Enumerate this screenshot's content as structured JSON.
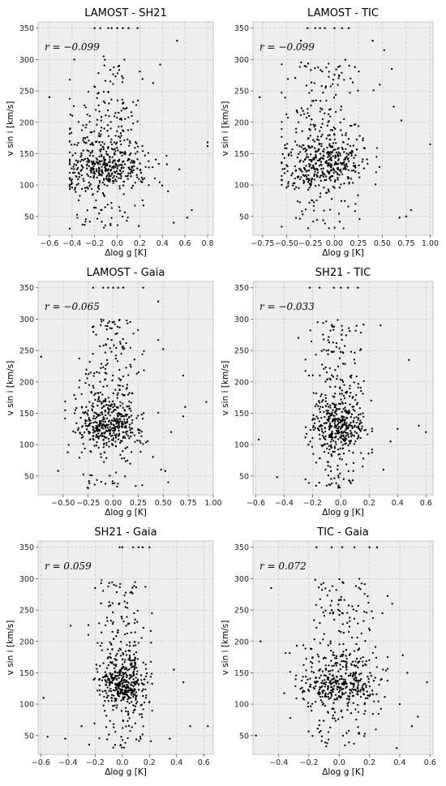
{
  "figure": {
    "ylabel": "v sin i [km/s]",
    "xlabel": "Δlog g [K]"
  },
  "chart_data": [
    {
      "type": "scatter",
      "title": "LAMOST - SH21",
      "annotation": "r = −0.099",
      "xlabel": "Δlog g [K]",
      "ylabel": "v sin i [km/s]",
      "xlim": [
        -0.7,
        0.85
      ],
      "ylim": [
        20,
        360
      ],
      "grid": true,
      "xticks": [
        -0.6,
        -0.4,
        -0.2,
        0.0,
        0.2,
        0.4,
        0.6,
        0.8
      ],
      "xtick_labels": [
        "−0.6",
        "−0.4",
        "−0.2",
        "0.0",
        "0.2",
        "0.4",
        "0.6",
        "0.8"
      ],
      "yticks": [
        50,
        100,
        150,
        200,
        250,
        300,
        350
      ],
      "cloud": {
        "n": 560,
        "x_center": -0.1,
        "x_spread": 0.18,
        "x_min": -0.42,
        "x_max": 0.45,
        "band_y": 115
      },
      "points": [
        {
          "x": -0.6,
          "y": 240
        },
        {
          "x": -0.4,
          "y": 96
        },
        {
          "x": 0.8,
          "y": 168
        },
        {
          "x": 0.8,
          "y": 162
        },
        {
          "x": 0.62,
          "y": 48
        },
        {
          "x": 0.66,
          "y": 60
        },
        {
          "x": 0.55,
          "y": 125
        },
        {
          "x": 0.45,
          "y": 90
        },
        {
          "x": 0.5,
          "y": 40
        },
        {
          "x": 0.53,
          "y": 330
        },
        {
          "x": 0.38,
          "y": 292
        },
        {
          "x": -0.38,
          "y": 300
        },
        {
          "x": -0.12,
          "y": 305
        },
        {
          "x": -0.3,
          "y": 155
        },
        {
          "x": -0.2,
          "y": 350
        },
        {
          "x": -0.15,
          "y": 350
        },
        {
          "x": -0.08,
          "y": 350
        },
        {
          "x": -0.05,
          "y": 350
        },
        {
          "x": 0.0,
          "y": 350
        },
        {
          "x": 0.05,
          "y": 350
        },
        {
          "x": 0.1,
          "y": 350
        },
        {
          "x": 0.18,
          "y": 350
        }
      ]
    },
    {
      "type": "scatter",
      "title": "LAMOST - TIC",
      "annotation": "r = −0.099",
      "xlabel": "Δlog g [K]",
      "ylabel": "v sin i [km/s]",
      "xlim": [
        -0.85,
        1.03
      ],
      "ylim": [
        20,
        360
      ],
      "grid": true,
      "xticks": [
        -0.75,
        -0.5,
        -0.25,
        0.0,
        0.25,
        0.5,
        0.75,
        1.0
      ],
      "xtick_labels": [
        "−0.75",
        "−0.50",
        "−0.25",
        "0.00",
        "0.25",
        "0.50",
        "0.75",
        "1.00"
      ],
      "yticks": [
        50,
        100,
        150,
        200,
        250,
        300,
        350
      ],
      "cloud": {
        "n": 560,
        "x_center": -0.12,
        "x_spread": 0.22,
        "x_min": -0.55,
        "x_max": 0.6,
        "band_y": 115
      },
      "points": [
        {
          "x": -0.78,
          "y": 240
        },
        {
          "x": -0.5,
          "y": 96
        },
        {
          "x": 1.0,
          "y": 165
        },
        {
          "x": 0.75,
          "y": 50
        },
        {
          "x": 0.68,
          "y": 48
        },
        {
          "x": 0.8,
          "y": 60
        },
        {
          "x": 0.62,
          "y": 225
        },
        {
          "x": 0.7,
          "y": 203
        },
        {
          "x": 0.6,
          "y": 285
        },
        {
          "x": 0.52,
          "y": 315
        },
        {
          "x": 0.4,
          "y": 330
        },
        {
          "x": -0.35,
          "y": 330
        },
        {
          "x": -0.28,
          "y": 350
        },
        {
          "x": -0.2,
          "y": 350
        },
        {
          "x": -0.1,
          "y": 350
        },
        {
          "x": 0.0,
          "y": 350
        },
        {
          "x": 0.08,
          "y": 350
        },
        {
          "x": 0.15,
          "y": 350
        },
        {
          "x": -0.15,
          "y": 350
        }
      ]
    },
    {
      "type": "scatter",
      "title": "LAMOST - Gaia",
      "annotation": "r = −0.065",
      "xlabel": "Δlog g [K]",
      "ylabel": "v sin i [km/s]",
      "xlim": [
        -0.75,
        1.0
      ],
      "ylim": [
        20,
        360
      ],
      "grid": true,
      "xticks": [
        -0.5,
        -0.25,
        0.0,
        0.25,
        0.5,
        0.75,
        1.0
      ],
      "xtick_labels": [
        "−0.50",
        "−0.25",
        "0.00",
        "0.25",
        "0.50",
        "0.75",
        "1.00"
      ],
      "yticks": [
        50,
        100,
        150,
        200,
        250,
        300,
        350
      ],
      "cloud": {
        "n": 560,
        "x_center": -0.05,
        "x_spread": 0.17,
        "x_min": -0.48,
        "x_max": 0.45,
        "band_y": 118
      },
      "points": [
        {
          "x": -0.72,
          "y": 240
        },
        {
          "x": -0.55,
          "y": 58
        },
        {
          "x": 0.93,
          "y": 168
        },
        {
          "x": 0.72,
          "y": 160
        },
        {
          "x": 0.7,
          "y": 145
        },
        {
          "x": 0.7,
          "y": 210
        },
        {
          "x": 0.58,
          "y": 120
        },
        {
          "x": 0.5,
          "y": 252
        },
        {
          "x": 0.45,
          "y": 328
        },
        {
          "x": 0.48,
          "y": 60
        },
        {
          "x": 0.52,
          "y": 58
        },
        {
          "x": 0.55,
          "y": 40
        },
        {
          "x": -0.1,
          "y": 350
        },
        {
          "x": -0.05,
          "y": 350
        },
        {
          "x": 0.0,
          "y": 350
        },
        {
          "x": 0.05,
          "y": 350
        },
        {
          "x": 0.1,
          "y": 350
        },
        {
          "x": -0.2,
          "y": 350
        },
        {
          "x": 0.3,
          "y": 350
        }
      ]
    },
    {
      "type": "scatter",
      "title": "SH21 - TIC",
      "annotation": "r = −0.033",
      "xlabel": "Δlog g [K]",
      "ylabel": "v sin i [km/s]",
      "xlim": [
        -0.62,
        0.65
      ],
      "ylim": [
        20,
        360
      ],
      "grid": true,
      "xticks": [
        -0.6,
        -0.4,
        -0.2,
        0.0,
        0.2,
        0.4,
        0.6
      ],
      "xtick_labels": [
        "−0.6",
        "−0.4",
        "−0.2",
        "0.0",
        "0.2",
        "0.4",
        "0.6"
      ],
      "yticks": [
        50,
        100,
        150,
        200,
        250,
        300,
        350
      ],
      "cloud": {
        "n": 540,
        "x_center": -0.02,
        "x_spread": 0.09,
        "x_min": -0.25,
        "x_max": 0.22,
        "band_y": 115
      },
      "points": [
        {
          "x": -0.58,
          "y": 108
        },
        {
          "x": -0.45,
          "y": 48
        },
        {
          "x": 0.55,
          "y": 130
        },
        {
          "x": 0.6,
          "y": 120
        },
        {
          "x": 0.48,
          "y": 235
        },
        {
          "x": 0.4,
          "y": 125
        },
        {
          "x": 0.35,
          "y": 105
        },
        {
          "x": 0.3,
          "y": 60
        },
        {
          "x": 0.28,
          "y": 290
        },
        {
          "x": -0.3,
          "y": 270
        },
        {
          "x": -0.15,
          "y": 350
        },
        {
          "x": -0.05,
          "y": 350
        },
        {
          "x": 0.0,
          "y": 350
        },
        {
          "x": 0.05,
          "y": 350
        },
        {
          "x": 0.12,
          "y": 350
        },
        {
          "x": -0.22,
          "y": 350
        }
      ]
    },
    {
      "type": "scatter",
      "title": "SH21 - Gaia",
      "annotation": "r = 0.059",
      "xlabel": "Δlog g [K]",
      "ylabel": "v sin i [km/s]",
      "xlim": [
        -0.62,
        0.67
      ],
      "ylim": [
        20,
        360
      ],
      "grid": true,
      "xticks": [
        -0.6,
        -0.4,
        -0.2,
        0.0,
        0.2,
        0.4,
        0.6
      ],
      "xtick_labels": [
        "−0.6",
        "−0.4",
        "−0.2",
        "0.0",
        "0.2",
        "0.4",
        "0.6"
      ],
      "yticks": [
        50,
        100,
        150,
        200,
        250,
        300,
        350
      ],
      "cloud": {
        "n": 540,
        "x_center": 0.0,
        "x_spread": 0.09,
        "x_min": -0.25,
        "x_max": 0.22,
        "band_y": 120
      },
      "points": [
        {
          "x": -0.58,
          "y": 110
        },
        {
          "x": -0.55,
          "y": 48
        },
        {
          "x": -0.42,
          "y": 45
        },
        {
          "x": -0.38,
          "y": 225
        },
        {
          "x": -0.3,
          "y": 65
        },
        {
          "x": 0.63,
          "y": 65
        },
        {
          "x": 0.5,
          "y": 65
        },
        {
          "x": 0.45,
          "y": 135
        },
        {
          "x": 0.38,
          "y": 155
        },
        {
          "x": 0.35,
          "y": 45
        },
        {
          "x": -0.2,
          "y": 285
        },
        {
          "x": -0.02,
          "y": 350
        },
        {
          "x": 0.0,
          "y": 350
        },
        {
          "x": 0.08,
          "y": 350
        },
        {
          "x": 0.12,
          "y": 350
        },
        {
          "x": 0.15,
          "y": 350
        },
        {
          "x": 0.2,
          "y": 350
        }
      ]
    },
    {
      "type": "scatter",
      "title": "TIC - Gaia",
      "annotation": "r = 0.072",
      "xlabel": "Δlog g [K]",
      "ylabel": "v sin i [km/s]",
      "xlim": [
        -0.57,
        0.62
      ],
      "ylim": [
        20,
        360
      ],
      "grid": true,
      "xticks": [
        -0.4,
        -0.2,
        0.0,
        0.2,
        0.4,
        0.6
      ],
      "xtick_labels": [
        "−0.4",
        "−0.2",
        "0.0",
        "0.2",
        "0.4",
        "0.6"
      ],
      "yticks": [
        50,
        100,
        150,
        200,
        250,
        300,
        350
      ],
      "cloud": {
        "n": 540,
        "x_center": 0.0,
        "x_spread": 0.13,
        "x_min": -0.38,
        "x_max": 0.32,
        "band_y": 120
      },
      "points": [
        {
          "x": -0.55,
          "y": 50
        },
        {
          "x": -0.52,
          "y": 200
        },
        {
          "x": -0.45,
          "y": 285
        },
        {
          "x": 0.58,
          "y": 135
        },
        {
          "x": 0.52,
          "y": 80
        },
        {
          "x": 0.48,
          "y": 65
        },
        {
          "x": 0.45,
          "y": 150
        },
        {
          "x": 0.42,
          "y": 178
        },
        {
          "x": 0.4,
          "y": 100
        },
        {
          "x": 0.38,
          "y": 30
        },
        {
          "x": 0.35,
          "y": 260
        },
        {
          "x": -0.05,
          "y": 350
        },
        {
          "x": 0.02,
          "y": 350
        },
        {
          "x": 0.1,
          "y": 350
        },
        {
          "x": 0.2,
          "y": 350
        },
        {
          "x": 0.25,
          "y": 350
        },
        {
          "x": -0.15,
          "y": 350
        }
      ]
    }
  ]
}
